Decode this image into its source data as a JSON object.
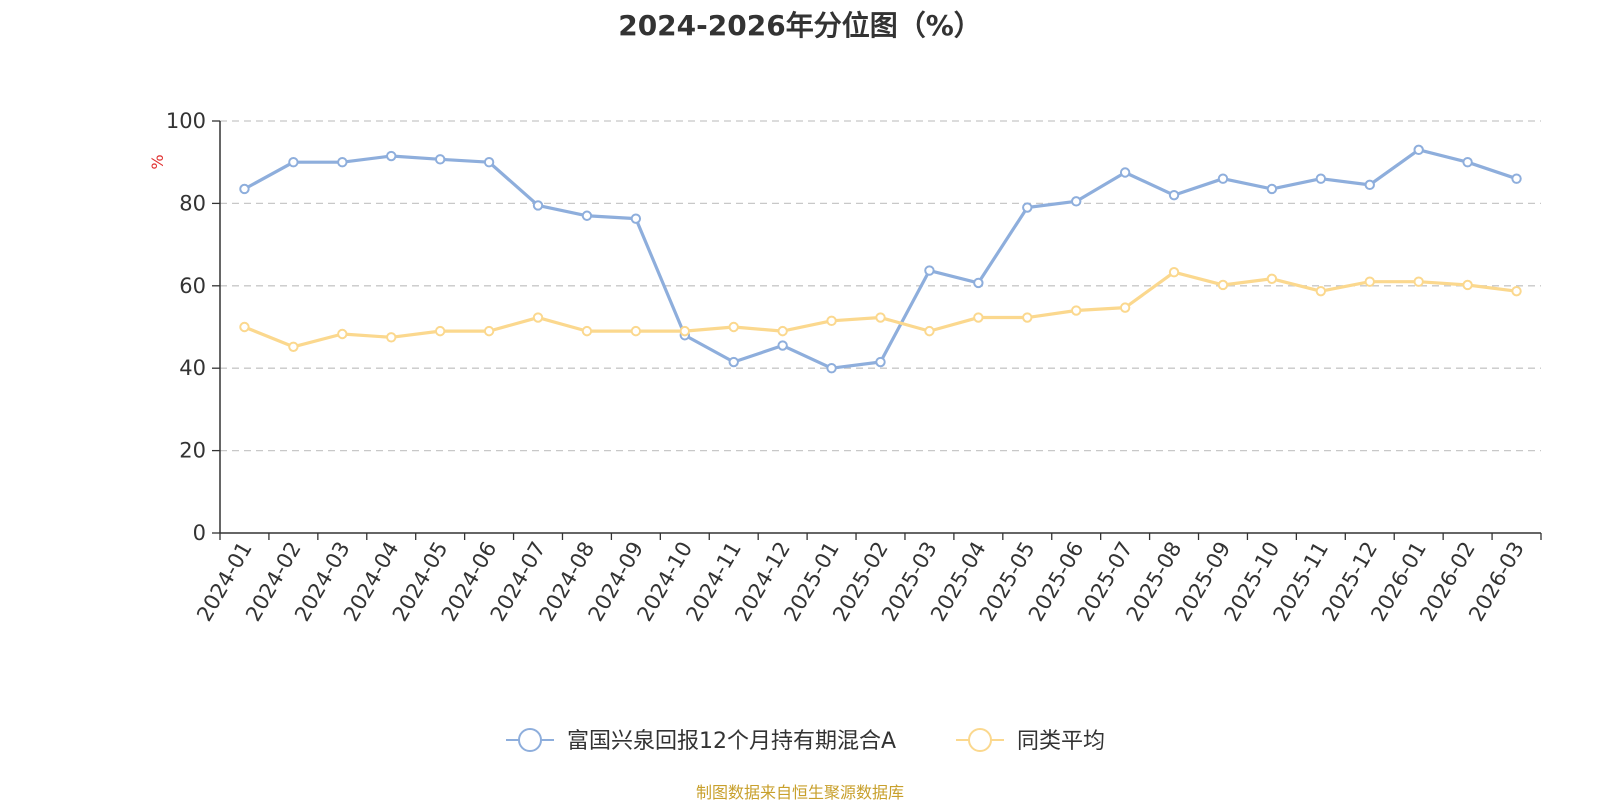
{
  "chart_data": {
    "type": "line",
    "title": "2024-2026年分位图（%）",
    "ylabel": "%",
    "ylim": [
      0,
      100
    ],
    "yticks": [
      0,
      20,
      40,
      60,
      80,
      100
    ],
    "grid": true,
    "legend_position": "bottom",
    "categories": [
      "2024-01",
      "2024-02",
      "2024-03",
      "2024-04",
      "2024-05",
      "2024-06",
      "2024-07",
      "2024-08",
      "2024-09",
      "2024-10",
      "2024-11",
      "2024-12",
      "2025-01",
      "2025-02",
      "2025-03",
      "2025-04",
      "2025-05",
      "2025-06",
      "2025-07",
      "2025-08",
      "2025-09",
      "2025-10",
      "2025-11",
      "2025-12",
      "2026-01",
      "2026-02",
      "2026-03"
    ],
    "series": [
      {
        "name": "富国兴泉回报12个月持有期混合A",
        "color": "#8eaedc",
        "values": [
          83.5,
          90,
          90,
          91.5,
          90.7,
          90,
          79.5,
          77,
          76.3,
          48,
          41.5,
          45.5,
          40,
          41.5,
          63.7,
          60.7,
          79,
          80.5,
          87.5,
          82,
          86,
          83.5,
          86,
          84.5,
          93,
          90,
          86
        ]
      },
      {
        "name": "同类平均",
        "color": "#fbd88e",
        "values": [
          50,
          45.2,
          48.3,
          47.5,
          49,
          49,
          52.3,
          49,
          49,
          49,
          50,
          49,
          51.5,
          52.3,
          49,
          52.3,
          52.3,
          54,
          54.7,
          63.3,
          60.2,
          61.7,
          58.7,
          61,
          61,
          60.2,
          58.7
        ]
      }
    ]
  },
  "source_note": "制图数据来自恒生聚源数据库"
}
